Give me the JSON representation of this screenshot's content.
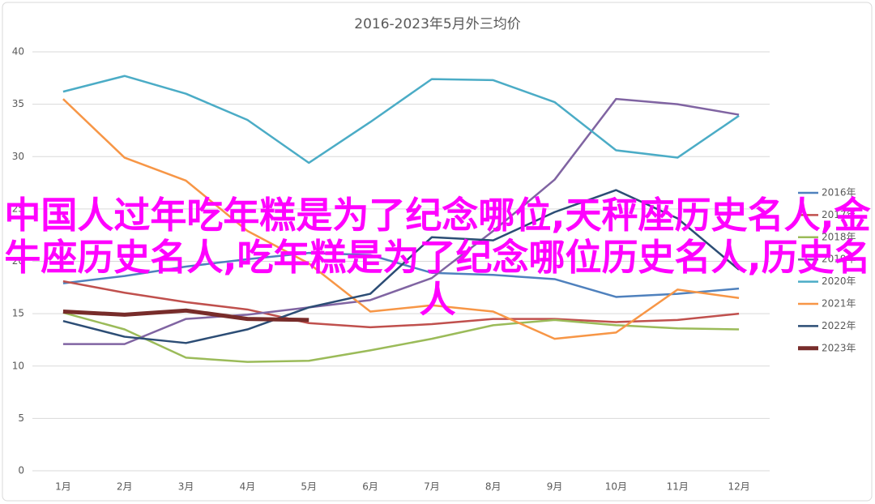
{
  "chart_data": {
    "type": "line",
    "title": "2016-2023年5月外三均价",
    "categories": [
      "1月",
      "2月",
      "3月",
      "4月",
      "5月",
      "6月",
      "7月",
      "8月",
      "9月",
      "10月",
      "11月",
      "12月"
    ],
    "ylim": [
      0,
      40
    ],
    "yticks": [
      0,
      5,
      10,
      15,
      20,
      25,
      30,
      35,
      40
    ],
    "grid": true,
    "legend": "right",
    "series": [
      {
        "name": "2016年",
        "color": "#4f81bd",
        "values": [
          17.9,
          18.6,
          19.5,
          20.2,
          20.8,
          20.6,
          18.9,
          18.7,
          18.3,
          16.6,
          16.9,
          17.4
        ]
      },
      {
        "name": "2017年",
        "color": "#c0504d",
        "values": [
          18.1,
          17.0,
          16.1,
          15.4,
          14.1,
          13.7,
          14.0,
          14.5,
          14.5,
          14.2,
          14.4,
          15.0
        ]
      },
      {
        "name": "2018年",
        "color": "#9bbb59",
        "values": [
          15.1,
          13.5,
          10.8,
          10.4,
          10.5,
          11.5,
          12.6,
          13.9,
          14.4,
          13.9,
          13.6,
          13.5
        ]
      },
      {
        "name": "2019年",
        "color": "#8064a2",
        "values": [
          12.1,
          12.1,
          14.5,
          14.9,
          15.6,
          16.3,
          18.4,
          22.9,
          27.8,
          35.5,
          35.0,
          34.0
        ]
      },
      {
        "name": "2020年",
        "color": "#4bacc6",
        "values": [
          36.2,
          37.7,
          36.0,
          33.5,
          29.4,
          33.3,
          37.4,
          37.3,
          35.2,
          30.6,
          29.9,
          33.9
        ]
      },
      {
        "name": "2021年",
        "color": "#f79646",
        "values": [
          35.5,
          29.9,
          27.7,
          22.9,
          19.8,
          15.2,
          15.8,
          15.2,
          12.6,
          13.2,
          17.3,
          16.5
        ]
      },
      {
        "name": "2022年",
        "color": "#2c4d75",
        "values": [
          14.3,
          12.8,
          12.2,
          13.5,
          15.6,
          16.9,
          22.3,
          22.0,
          24.7,
          26.8,
          24.1,
          19.2
        ]
      },
      {
        "name": "2023年",
        "color": "#772c2a",
        "values": [
          15.2,
          14.9,
          15.3,
          14.5,
          14.4,
          null,
          null,
          null,
          null,
          null,
          null,
          null
        ]
      }
    ],
    "overlay_text": "中国人过年吃年糕是为了纪念哪位,天秤座历史名人,金牛座历史名人,吃年糕是为了纪念哪位历史名人,历史名人"
  }
}
